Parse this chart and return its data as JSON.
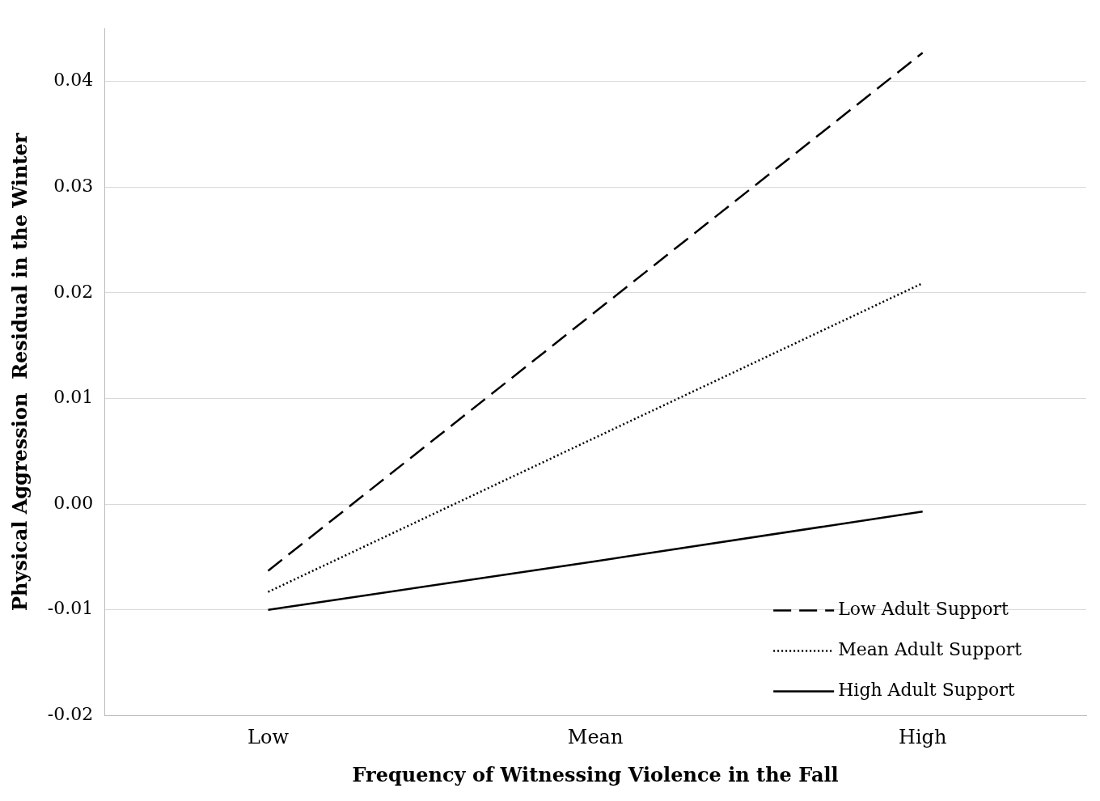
{
  "chart_data": {
    "type": "line",
    "xlabel": "Frequency of Witnessing Violence in the Fall",
    "ylabel": "Physical Aggression  Residual in the Winter",
    "categories": [
      "Low",
      "Mean",
      "High"
    ],
    "series": [
      {
        "name": "Low Adult Support",
        "color": "#000000",
        "line_style": "dashed",
        "values": [
          -0.0063,
          0.0182,
          0.0427
        ]
      },
      {
        "name": "Mean Adult Support",
        "color": "#000000",
        "line_style": "dotted",
        "values": [
          -0.0083,
          0.0063,
          0.0209
        ]
      },
      {
        "name": "High Adult Support",
        "color": "#000000",
        "line_style": "solid",
        "values": [
          -0.01,
          -0.0054,
          -0.0007
        ]
      }
    ],
    "ylim": [
      -0.02,
      0.045
    ],
    "yticks": [
      {
        "value": -0.02,
        "label": "-0.02"
      },
      {
        "value": -0.01,
        "label": "-0.01"
      },
      {
        "value": 0,
        "label": "0.00"
      },
      {
        "value": 0.01,
        "label": "0.01"
      },
      {
        "value": 0.02,
        "label": "0.02"
      },
      {
        "value": 0.03,
        "label": "0.03"
      },
      {
        "value": 0.04,
        "label": "0.04"
      }
    ],
    "grid": "y",
    "legend": "bottom right",
    "marker": "none"
  }
}
